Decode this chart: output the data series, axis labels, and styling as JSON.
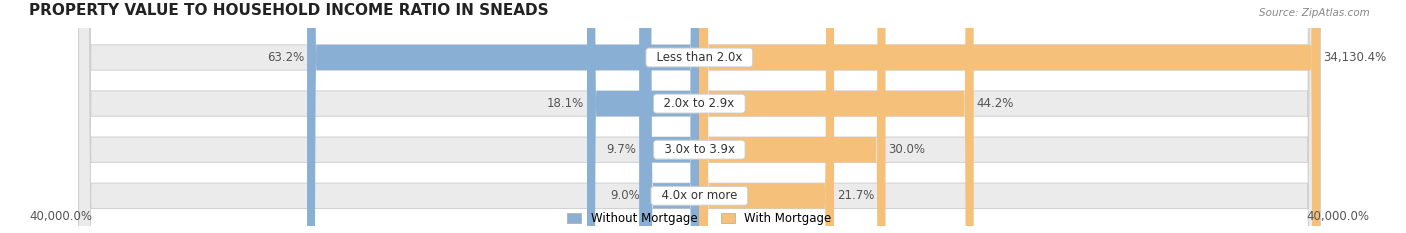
{
  "title": "PROPERTY VALUE TO HOUSEHOLD INCOME RATIO IN SNEADS",
  "source": "Source: ZipAtlas.com",
  "categories": [
    "Less than 2.0x",
    "2.0x to 2.9x",
    "3.0x to 3.9x",
    "4.0x or more"
  ],
  "without_mortgage": [
    63.2,
    18.1,
    9.7,
    9.0
  ],
  "with_mortgage": [
    34130.4,
    44.2,
    30.0,
    21.7
  ],
  "without_mortgage_color": "#8AAFD4",
  "with_mortgage_color": "#F5C07A",
  "bar_bg_color": "#EBEBEB",
  "bar_outline_color": "#D0D0D0",
  "axis_label_left": "40,000.0%",
  "axis_label_right": "40,000.0%",
  "legend_without": "Without Mortgage",
  "legend_with": "With Mortgage",
  "title_fontsize": 11,
  "label_fontsize": 8.5,
  "bar_height": 0.55,
  "fig_width": 14.06,
  "fig_height": 2.33
}
